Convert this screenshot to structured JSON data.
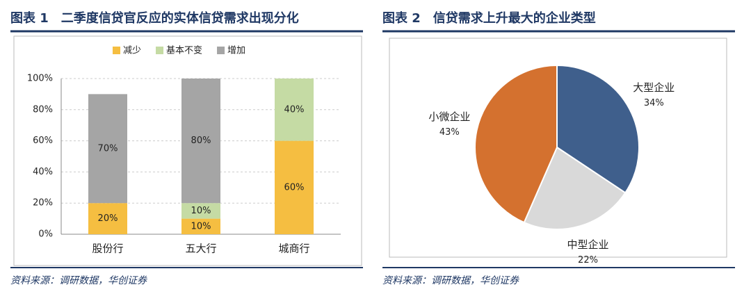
{
  "chart_data": [
    {
      "type": "bar",
      "stacked": true,
      "title": "图表 1　二季度信贷官反应的实体信贷需求出现分化",
      "categories": [
        "股份行",
        "五大行",
        "城商行"
      ],
      "series": [
        {
          "name": "减少",
          "color": "#f5be41",
          "values": [
            20,
            10,
            60
          ],
          "value_labels": [
            "20%",
            "10%",
            "60%"
          ]
        },
        {
          "name": "基本不变",
          "color": "#c5dba4",
          "values": [
            null,
            10,
            40
          ],
          "value_labels": [
            null,
            "10%",
            "40%"
          ]
        },
        {
          "name": "增加",
          "color": "#a5a5a5",
          "values": [
            70,
            80,
            null
          ],
          "value_labels": [
            "70%",
            "80%",
            null
          ]
        }
      ],
      "ylim": [
        0,
        100
      ],
      "yticks": [
        {
          "value": 0,
          "label": "0%"
        },
        {
          "value": 20,
          "label": "20%"
        },
        {
          "value": 40,
          "label": "40%"
        },
        {
          "value": 60,
          "label": "60%"
        },
        {
          "value": 80,
          "label": "80%"
        },
        {
          "value": 100,
          "label": "100%"
        }
      ],
      "grid": true,
      "legend": "top",
      "source": "资料来源：调研数据，华创证券"
    },
    {
      "type": "pie",
      "title": "图表 2　信贷需求上升最大的企业类型",
      "categories": [
        "大型企业",
        "中型企业",
        "小微企业"
      ],
      "values": [
        34,
        22,
        43
      ],
      "value_labels": [
        "34%",
        "22%",
        "43%"
      ],
      "colors": [
        "#3f5f8c",
        "#d9d9d9",
        "#d4712f"
      ],
      "source": "资料来源：调研数据，华创证券"
    }
  ]
}
